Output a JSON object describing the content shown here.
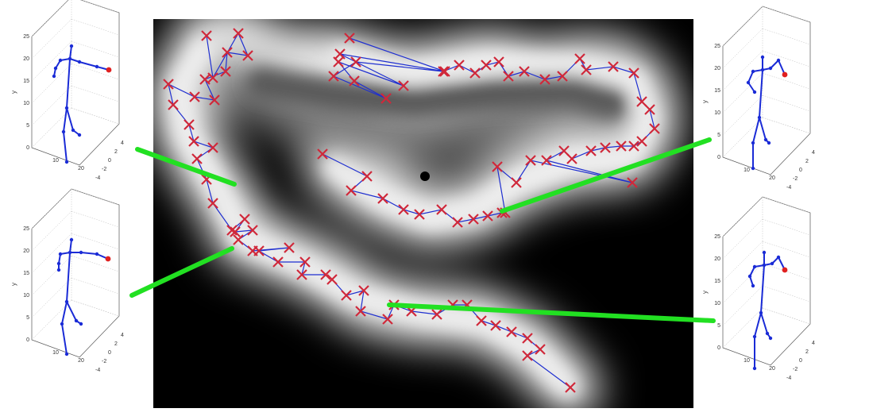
{
  "figure": {
    "center_marker_color": "#000000",
    "trajectory_color": "#1f2fd0",
    "cross_color": "#d0283a",
    "link_color": "#22e022",
    "skeleton_color": "#1a2bd6",
    "hand_marker_color": "#e02020"
  },
  "panels": [
    {
      "id": "top-left",
      "y_axis_label": "y",
      "y_ticks": [
        "25",
        "20",
        "15",
        "10",
        "5",
        "0"
      ],
      "x_ticks": [
        "10",
        "20"
      ],
      "z_ticks": [
        "-4",
        "-2",
        "0",
        "2",
        "4"
      ]
    },
    {
      "id": "bottom-left",
      "y_axis_label": "y",
      "y_ticks": [
        "25",
        "20",
        "15",
        "10",
        "5",
        "0"
      ],
      "x_ticks": [
        "10",
        "20"
      ],
      "z_ticks": [
        "-4",
        "-2",
        "0",
        "2",
        "4"
      ]
    },
    {
      "id": "top-right",
      "y_axis_label": "y",
      "y_ticks": [
        "25",
        "20",
        "15",
        "10",
        "5",
        "0"
      ],
      "x_ticks": [
        "10",
        "20"
      ],
      "z_ticks": [
        "-4",
        "-2",
        "0",
        "2",
        "4"
      ]
    },
    {
      "id": "bottom-right",
      "y_axis_label": "y",
      "y_ticks": [
        "25",
        "20",
        "15",
        "10",
        "5",
        "0"
      ],
      "x_ticks": [
        "10",
        "20"
      ],
      "z_ticks": [
        "-4",
        "-2",
        "0",
        "2",
        "4"
      ]
    }
  ]
}
